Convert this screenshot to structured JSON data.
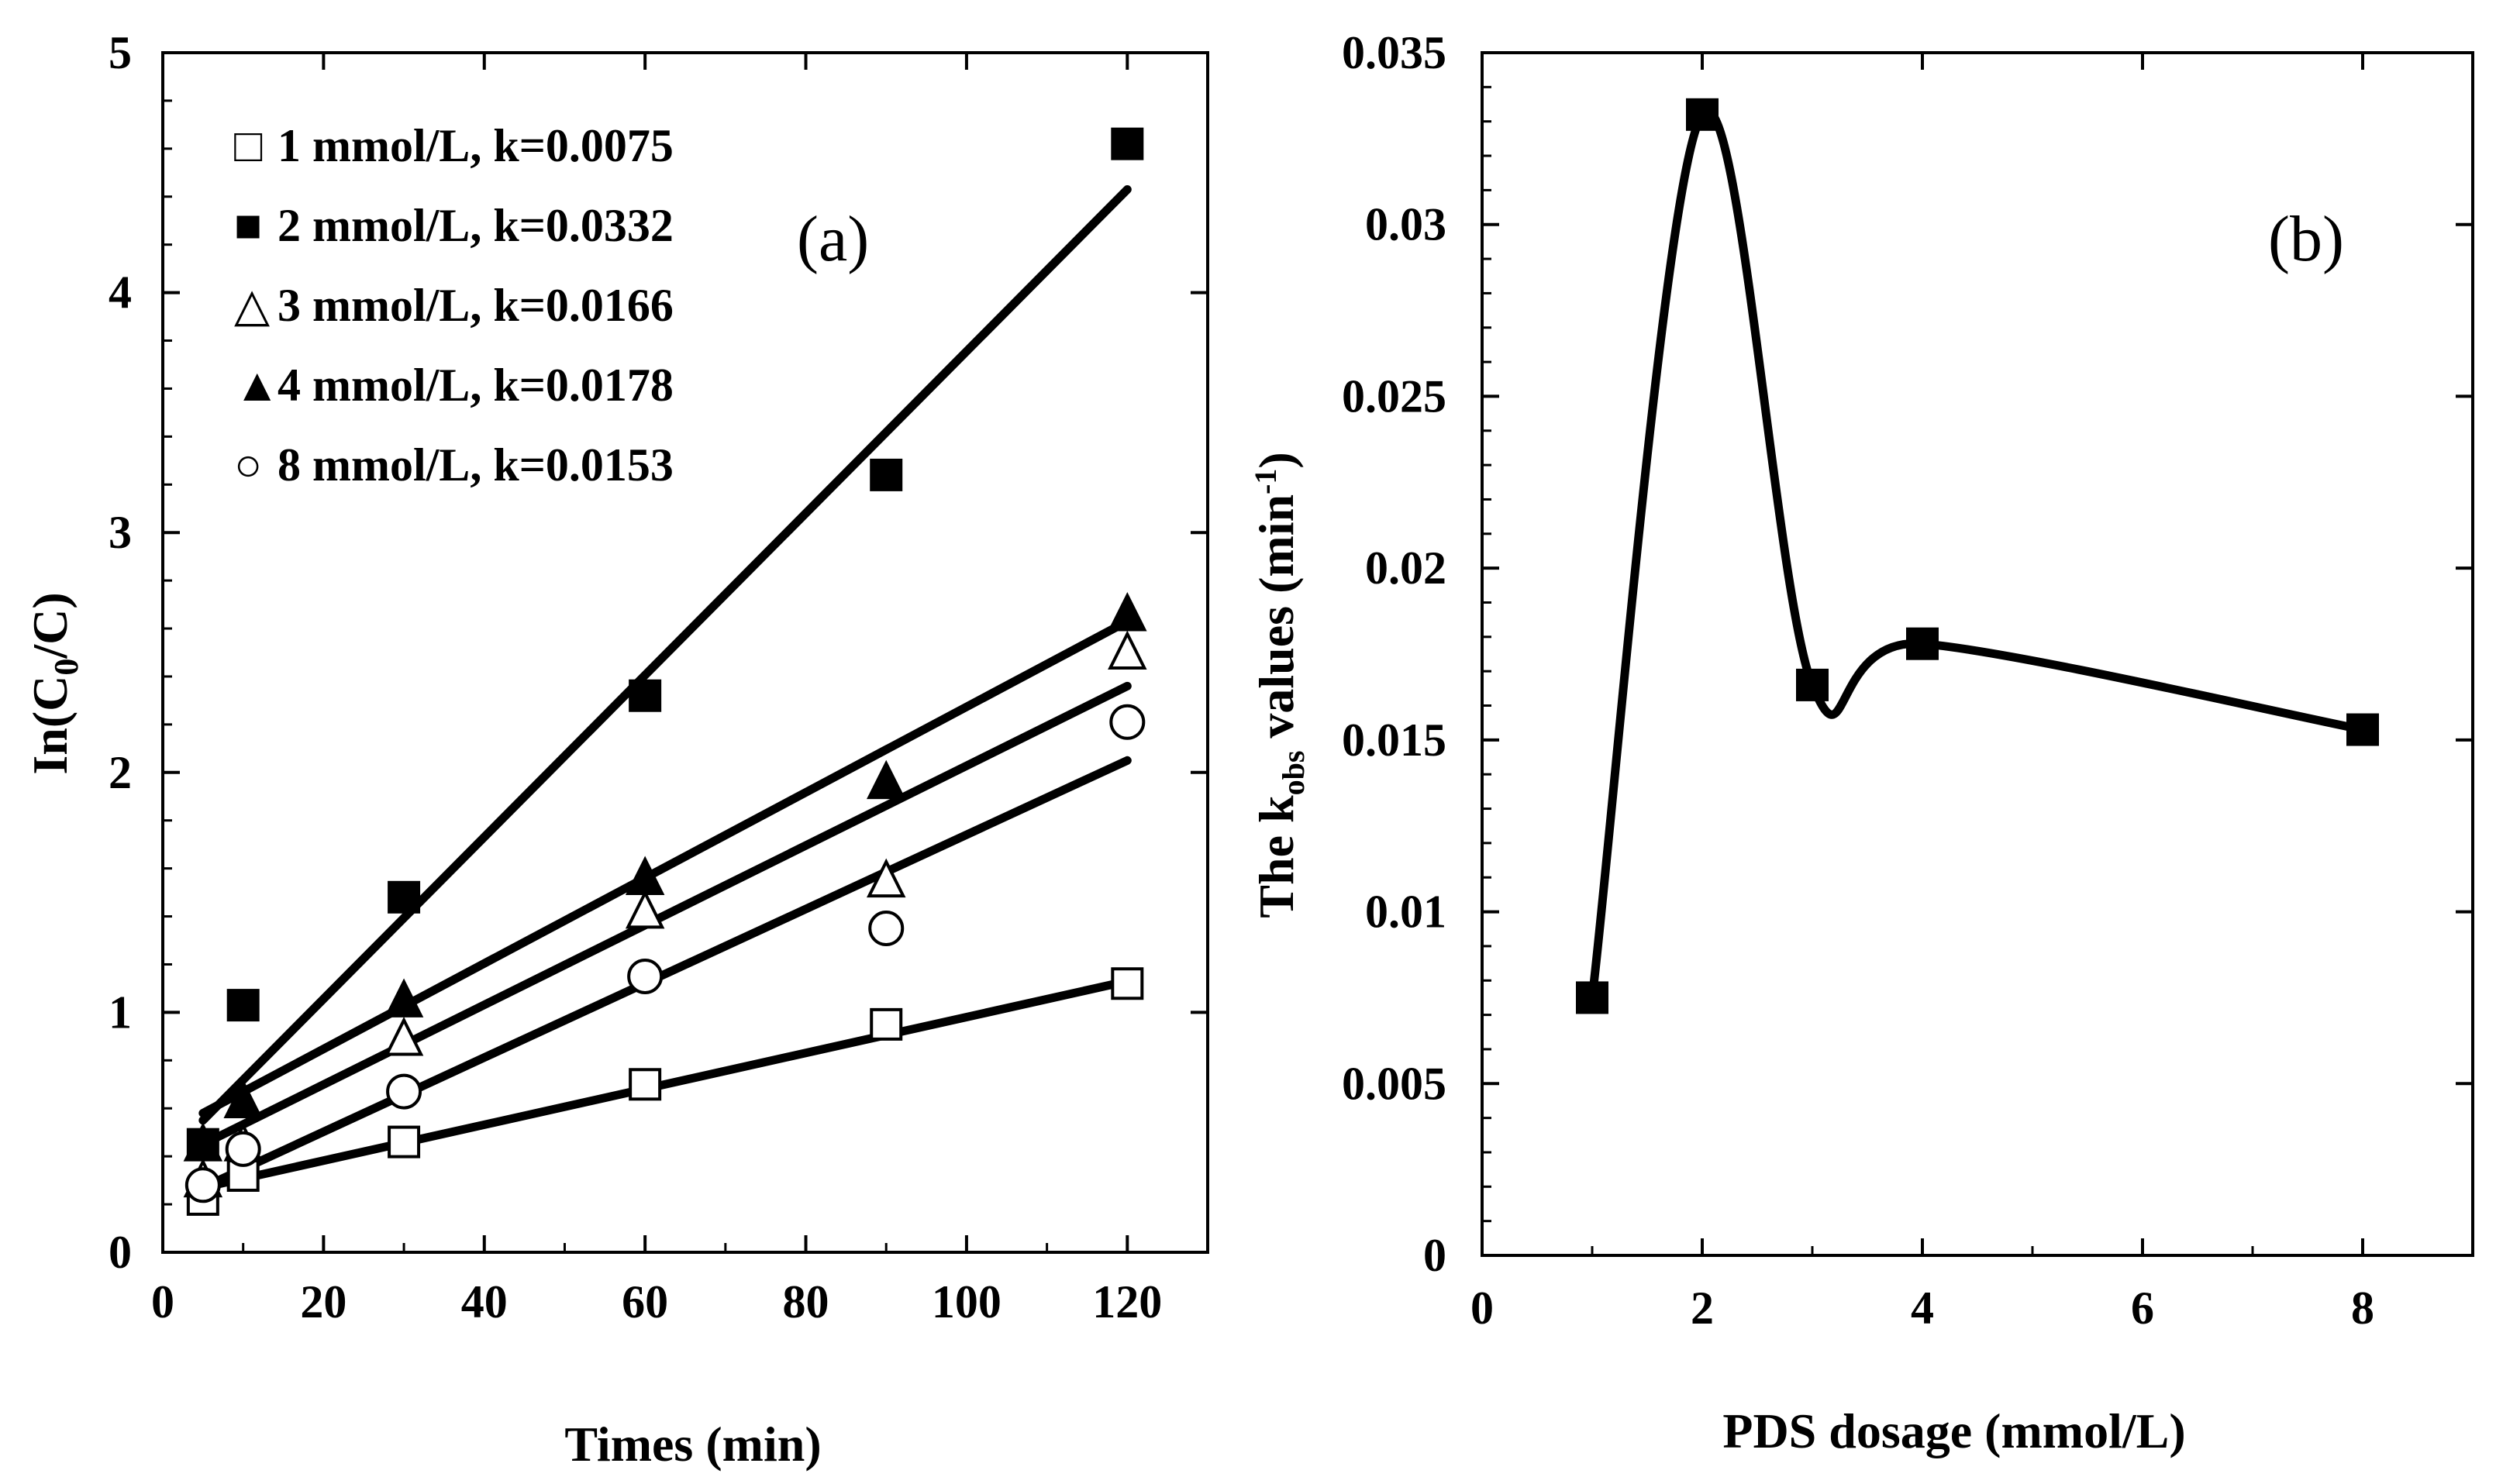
{
  "chart_data": [
    {
      "panel": "a",
      "type": "scatter",
      "panel_label": "(a)",
      "xlabel": "Times (min)",
      "ylabel": "In(C",
      "ylabel_sub": "0",
      "ylabel_tail": "/C)",
      "xlim": [
        0,
        130
      ],
      "ylim": [
        0,
        5
      ],
      "xticks": [
        0,
        20,
        40,
        60,
        80,
        100,
        120
      ],
      "yticks": [
        0,
        1,
        2,
        3,
        4,
        5
      ],
      "x": [
        5,
        10,
        30,
        60,
        90,
        120
      ],
      "series": [
        {
          "name": "1 mmol/L, k=0.0075",
          "marker": "square-open",
          "legend_symbol": "□",
          "values": [
            0.22,
            0.32,
            0.46,
            0.7,
            0.95,
            1.12
          ],
          "fit": [
            [
              5,
              0.27
            ],
            [
              120,
              1.13
            ]
          ]
        },
        {
          "name": "2 mmol/L, k=0.0332",
          "marker": "square-filled",
          "legend_symbol": "■",
          "values": [
            0.45,
            1.03,
            1.48,
            2.32,
            3.24,
            4.62
          ],
          "fit": [
            [
              5,
              0.55
            ],
            [
              120,
              4.43
            ]
          ]
        },
        {
          "name": "3 mmol/L, k=0.0166",
          "marker": "triangle-open",
          "legend_symbol": "△",
          "values": [
            0.3,
            0.45,
            0.89,
            1.42,
            1.55,
            2.5
          ],
          "fit": [
            [
              5,
              0.45
            ],
            [
              120,
              2.36
            ]
          ]
        },
        {
          "name": "4 mmol/L, k=0.0178",
          "marker": "triangle-filled",
          "legend_symbol": "▲",
          "values": [
            0.45,
            0.63,
            1.05,
            1.56,
            1.96,
            2.66
          ],
          "fit": [
            [
              5,
              0.58
            ],
            [
              120,
              2.63
            ]
          ]
        },
        {
          "name": "8 mmol/L, k=0.0153",
          "marker": "circle-open",
          "legend_symbol": "○",
          "values": [
            0.28,
            0.43,
            0.67,
            1.15,
            1.35,
            2.21
          ],
          "fit": [
            [
              5,
              0.27
            ],
            [
              120,
              2.05
            ]
          ]
        }
      ]
    },
    {
      "panel": "b",
      "type": "line",
      "panel_label": "(b)",
      "xlabel": "PDS dosage (mmol/L)",
      "ylabel": "The k",
      "ylabel_sub": "obs",
      "ylabel_mid": " values (min",
      "ylabel_sup": "-1",
      "ylabel_tail": ")",
      "xlim": [
        0,
        9
      ],
      "ylim": [
        0,
        0.035
      ],
      "xticks": [
        0,
        2,
        4,
        6,
        8
      ],
      "yticks": [
        0,
        0.005,
        0.01,
        0.015,
        0.02,
        0.025,
        0.03,
        0.035
      ],
      "ytick_labels": [
        "0",
        "0.005",
        "0.01",
        "0.015",
        "0.02",
        "0.025",
        "0.03",
        "0.035"
      ],
      "categories": [
        "1",
        "2",
        "3",
        "4",
        "8"
      ],
      "x": [
        1,
        2,
        3,
        4,
        8
      ],
      "values": [
        0.0075,
        0.0332,
        0.0166,
        0.0178,
        0.0153
      ],
      "curve_through": [
        [
          1,
          0.0075
        ],
        [
          2,
          0.0332
        ],
        [
          3,
          0.0166
        ],
        [
          4,
          0.0178
        ],
        [
          8,
          0.0153
        ]
      ]
    }
  ]
}
